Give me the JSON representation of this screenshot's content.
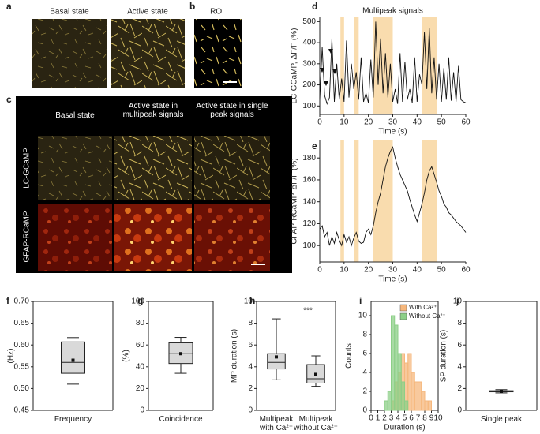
{
  "panels": {
    "a": {
      "label": "a",
      "titles": [
        "Basal state",
        "Active state"
      ]
    },
    "b": {
      "label": "b",
      "title": "ROI"
    },
    "c": {
      "label": "c",
      "columns": [
        "Basal state",
        "Active state in multipeak signals",
        "Active state in single peak signals"
      ],
      "rows": [
        "LC-GCaMP",
        "GFAP-RCaMP"
      ]
    }
  },
  "chart_data": [
    {
      "panel": "d",
      "type": "line",
      "title": "Multipeak signals",
      "x_label": "Time (s)",
      "y_label": "LC-GCaMP, ΔF/F (%)",
      "x": [
        0,
        1,
        2,
        3,
        4,
        5,
        6,
        7,
        8,
        9,
        10,
        11,
        12,
        13,
        14,
        15,
        16,
        17,
        18,
        19,
        20,
        21,
        22,
        23,
        24,
        25,
        26,
        27,
        28,
        29,
        30,
        31,
        32,
        33,
        34,
        35,
        36,
        37,
        38,
        39,
        40,
        41,
        42,
        43,
        44,
        45,
        46,
        47,
        48,
        49,
        50,
        51,
        52,
        53,
        54,
        55,
        56,
        57,
        58,
        59,
        60
      ],
      "series": [
        {
          "color": "#111111",
          "values": [
            130,
            380,
            150,
            110,
            140,
            420,
            120,
            300,
            130,
            230,
            120,
            410,
            140,
            300,
            180,
            260,
            130,
            330,
            120,
            160,
            115,
            320,
            140,
            500,
            200,
            420,
            160,
            350,
            140,
            300,
            120,
            180,
            110,
            350,
            120,
            310,
            130,
            180,
            115,
            330,
            120,
            250,
            200,
            450,
            180,
            470,
            160,
            330,
            130,
            300,
            120,
            280,
            130,
            330,
            125,
            260,
            120,
            290,
            130,
            120,
            115
          ]
        }
      ],
      "xlim": [
        0,
        60
      ],
      "ylim": [
        60,
        520
      ],
      "xticks": [
        0,
        10,
        20,
        30,
        40,
        50,
        60
      ],
      "yticks": [
        100,
        200,
        300,
        400,
        500
      ],
      "highlights": [
        [
          8.5,
          10
        ],
        [
          14,
          16
        ],
        [
          22,
          30
        ],
        [
          42,
          48
        ]
      ],
      "highlight_color": "#f9dcae"
    },
    {
      "panel": "e",
      "type": "line",
      "x_label": "Time (s)",
      "y_label": "GFAP-RCaMP, ΔF/F (%)",
      "x": [
        0,
        1,
        2,
        3,
        4,
        5,
        6,
        7,
        8,
        9,
        10,
        11,
        12,
        13,
        14,
        15,
        16,
        17,
        18,
        19,
        20,
        21,
        22,
        23,
        24,
        25,
        26,
        27,
        28,
        29,
        30,
        31,
        32,
        33,
        34,
        35,
        36,
        37,
        38,
        39,
        40,
        41,
        42,
        43,
        44,
        45,
        46,
        47,
        48,
        49,
        50,
        51,
        52,
        53,
        54,
        55,
        56,
        57,
        58,
        59,
        60
      ],
      "series": [
        {
          "color": "#111111",
          "values": [
            115,
            118,
            108,
            112,
            100,
            108,
            102,
            112,
            105,
            100,
            110,
            103,
            108,
            100,
            107,
            112,
            104,
            102,
            103,
            112,
            115,
            110,
            118,
            130,
            140,
            148,
            160,
            172,
            180,
            186,
            190,
            180,
            172,
            165,
            160,
            155,
            150,
            142,
            135,
            128,
            122,
            130,
            138,
            148,
            160,
            168,
            172,
            165,
            158,
            150,
            145,
            138,
            135,
            130,
            128,
            125,
            122,
            120,
            118,
            115,
            112
          ]
        }
      ],
      "xlim": [
        0,
        60
      ],
      "ylim": [
        85,
        196
      ],
      "xticks": [
        0,
        10,
        20,
        30,
        40,
        50,
        60
      ],
      "yticks": [
        100,
        120,
        140,
        160,
        180
      ],
      "highlights": [
        [
          8.5,
          10
        ],
        [
          14,
          16
        ],
        [
          22,
          30
        ],
        [
          42,
          48
        ]
      ],
      "highlight_color": "#f9dcae"
    },
    {
      "panel": "f",
      "type": "box",
      "y_label": "(Hz)",
      "categories": [
        "Frequency"
      ],
      "color": "#d9d9d9",
      "boxes": [
        {
          "whisker_low": 0.51,
          "q1": 0.535,
          "median": 0.56,
          "q3": 0.607,
          "whisker_high": 0.617,
          "mean": 0.565
        }
      ],
      "ylim": [
        0.45,
        0.7
      ],
      "yticks": [
        0.45,
        {
          "value": 0.5,
          "label": "0.50"
        },
        0.55,
        {
          "value": 0.6,
          "label": "0.60"
        },
        0.65,
        {
          "value": 0.7,
          "label": "0.70"
        }
      ]
    },
    {
      "panel": "g",
      "type": "box",
      "y_label": "(%)",
      "categories": [
        "Coincidence"
      ],
      "color": "#d9d9d9",
      "boxes": [
        {
          "whisker_low": 34,
          "q1": 43,
          "median": 52,
          "q3": 62,
          "whisker_high": 67,
          "mean": 52
        }
      ],
      "ylim": [
        0,
        100
      ],
      "yticks": [
        0,
        20,
        40,
        60,
        80,
        100
      ]
    },
    {
      "panel": "h",
      "type": "box",
      "y_label": "MP duration (s)",
      "categories": [
        "Multipeak with Ca²⁺",
        "Multipeak without Ca²⁺"
      ],
      "color": "#d9d9d9",
      "boxes": [
        {
          "whisker_low": 2.8,
          "q1": 3.8,
          "median": 4.4,
          "q3": 5.2,
          "whisker_high": 8.4,
          "mean": 4.9
        },
        {
          "whisker_low": 2.2,
          "q1": 2.5,
          "median": 2.9,
          "q3": 4.2,
          "whisker_high": 5.0,
          "mean": 3.3
        }
      ],
      "annotation": "***",
      "ylim": [
        0,
        10
      ],
      "yticks": [
        0,
        2,
        4,
        6,
        8,
        10
      ]
    },
    {
      "panel": "i",
      "type": "histogram",
      "x_label": "Duration (s)",
      "y_label": "Counts",
      "bins": [
        1.5,
        2,
        2.5,
        3,
        3.5,
        4,
        4.5,
        5,
        5.5,
        6,
        6.5,
        7,
        7.5,
        8,
        8.5,
        9
      ],
      "series": [
        {
          "name": "With Ca²⁺",
          "color": "#f6b77c",
          "values": [
            0,
            0,
            0,
            1,
            3,
            4,
            6,
            5,
            6,
            4,
            3,
            3,
            2,
            1,
            1
          ]
        },
        {
          "name": "Without Ca²⁺",
          "color": "#8ccf87",
          "values": [
            0,
            1,
            2,
            10,
            9,
            6,
            3,
            1,
            0,
            0,
            0,
            0,
            0,
            0,
            0
          ]
        }
      ],
      "legend": "top right",
      "xlim": [
        0,
        10
      ],
      "ylim": [
        0,
        11.5
      ],
      "xticks": [
        0,
        1,
        2,
        3,
        4,
        5,
        6,
        7,
        8,
        9,
        10
      ],
      "yticks": [
        0,
        2,
        4,
        6,
        8,
        10
      ]
    },
    {
      "panel": "j",
      "type": "box",
      "y_label": "SP duration (s)",
      "categories": [
        "Single peak"
      ],
      "color": "#d9d9d9",
      "boxes": [
        {
          "whisker_low": 1.6,
          "q1": 1.7,
          "median": 1.75,
          "q3": 1.8,
          "whisker_high": 1.9,
          "mean": 1.75
        }
      ],
      "ylim": [
        0,
        10
      ],
      "yticks": [
        0,
        2,
        4,
        6,
        8,
        10
      ]
    }
  ]
}
